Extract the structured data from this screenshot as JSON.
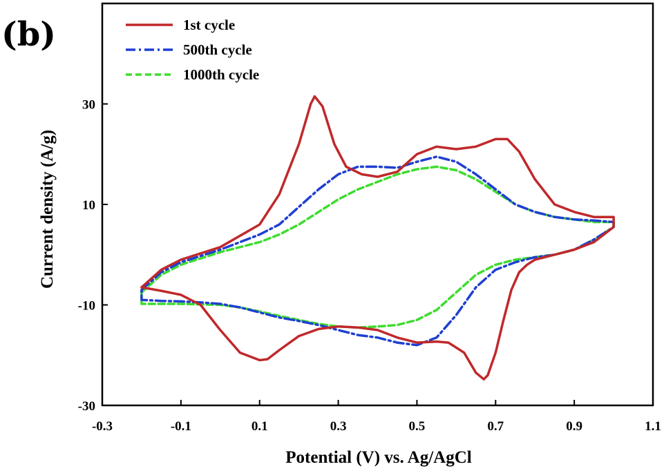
{
  "chart_data": {
    "type": "line",
    "panel_label": "(b)",
    "xlabel": "Potential (V) vs. Ag/AgCl",
    "ylabel": "Current density (A/g)",
    "xlim": [
      -0.3,
      1.1
    ],
    "ylim": [
      -30,
      50
    ],
    "x_ticks": [
      -0.3,
      -0.1,
      0.1,
      0.3,
      0.5,
      0.7,
      0.9,
      1.1
    ],
    "y_ticks": [
      -30,
      -10,
      10,
      30
    ],
    "x_tick_labels": [
      "-0.3",
      "-0.1",
      "0.1",
      "0.3",
      "0.5",
      "0.7",
      "0.9",
      "1.1"
    ],
    "y_tick_labels": [
      "-30",
      "-10",
      "10",
      "30"
    ],
    "grid": false,
    "legend_position": "top-left",
    "series": [
      {
        "name": "1st cycle",
        "color": "#c0282a",
        "style": "solid",
        "x": [
          -0.2,
          -0.15,
          -0.1,
          0.0,
          0.1,
          0.15,
          0.2,
          0.23,
          0.24,
          0.26,
          0.29,
          0.32,
          0.36,
          0.4,
          0.45,
          0.5,
          0.55,
          0.6,
          0.65,
          0.7,
          0.73,
          0.76,
          0.8,
          0.85,
          0.9,
          0.95,
          1.0,
          1.0,
          0.95,
          0.9,
          0.85,
          0.8,
          0.78,
          0.76,
          0.74,
          0.72,
          0.7,
          0.68,
          0.67,
          0.65,
          0.62,
          0.58,
          0.55,
          0.5,
          0.45,
          0.4,
          0.35,
          0.3,
          0.25,
          0.2,
          0.15,
          0.12,
          0.1,
          0.05,
          0.0,
          -0.05,
          -0.1,
          -0.15,
          -0.2
        ],
        "y": [
          -6.5,
          -3.0,
          -1.0,
          1.5,
          6.0,
          12.0,
          22.0,
          30.0,
          31.5,
          29.5,
          22.0,
          17.5,
          16.0,
          15.5,
          16.5,
          20.0,
          21.5,
          21.0,
          21.5,
          23.0,
          23.0,
          20.5,
          15.0,
          10.0,
          8.5,
          7.5,
          7.5,
          5.5,
          2.5,
          1.0,
          0.0,
          -1.0,
          -2.0,
          -3.5,
          -7.0,
          -13.0,
          -19.5,
          -24.0,
          -24.8,
          -23.5,
          -19.5,
          -17.5,
          -17.3,
          -17.5,
          -16.5,
          -15.0,
          -14.5,
          -14.3,
          -14.8,
          -16.2,
          -19.0,
          -20.8,
          -21.0,
          -19.5,
          -15.0,
          -10.0,
          -8.0,
          -7.2,
          -6.5
        ]
      },
      {
        "name": "500th cycle",
        "color": "#1f3fd1",
        "style": "dashdot",
        "x": [
          -0.2,
          -0.15,
          -0.1,
          0.0,
          0.05,
          0.1,
          0.15,
          0.2,
          0.25,
          0.3,
          0.35,
          0.4,
          0.45,
          0.5,
          0.55,
          0.6,
          0.65,
          0.7,
          0.75,
          0.8,
          0.85,
          0.9,
          0.95,
          1.0,
          1.0,
          0.95,
          0.9,
          0.85,
          0.8,
          0.75,
          0.7,
          0.65,
          0.6,
          0.55,
          0.5,
          0.45,
          0.4,
          0.35,
          0.3,
          0.25,
          0.2,
          0.15,
          0.1,
          0.05,
          0.0,
          -0.05,
          -0.1,
          -0.15,
          -0.2,
          -0.2
        ],
        "y": [
          -7.0,
          -3.5,
          -1.5,
          1.0,
          2.5,
          4.0,
          6.0,
          9.5,
          13.0,
          16.0,
          17.5,
          17.5,
          17.3,
          18.5,
          19.5,
          18.5,
          16.0,
          13.0,
          10.0,
          8.5,
          7.5,
          7.0,
          6.8,
          6.5,
          5.5,
          3.0,
          1.0,
          0.0,
          -0.5,
          -1.5,
          -3.0,
          -6.5,
          -12.0,
          -16.5,
          -18.0,
          -17.5,
          -16.5,
          -16.0,
          -15.0,
          -14.0,
          -13.2,
          -12.5,
          -11.5,
          -10.5,
          -9.8,
          -9.5,
          -9.3,
          -9.2,
          -9.0,
          -7.0
        ]
      },
      {
        "name": "1000th cycle",
        "color": "#3ddc2e",
        "style": "dashed",
        "x": [
          -0.2,
          -0.15,
          -0.1,
          0.0,
          0.05,
          0.1,
          0.15,
          0.2,
          0.25,
          0.3,
          0.35,
          0.4,
          0.45,
          0.5,
          0.55,
          0.6,
          0.65,
          0.7,
          0.75,
          0.8,
          0.85,
          0.9,
          0.95,
          1.0,
          1.0,
          0.95,
          0.9,
          0.85,
          0.8,
          0.75,
          0.7,
          0.65,
          0.6,
          0.55,
          0.5,
          0.45,
          0.4,
          0.35,
          0.3,
          0.25,
          0.2,
          0.15,
          0.1,
          0.05,
          0.0,
          -0.05,
          -0.1,
          -0.15,
          -0.2,
          -0.2
        ],
        "y": [
          -7.5,
          -4.0,
          -2.0,
          0.5,
          1.5,
          2.5,
          4.0,
          6.0,
          8.5,
          11.0,
          13.0,
          14.5,
          16.0,
          17.0,
          17.5,
          16.8,
          15.0,
          12.5,
          10.0,
          8.5,
          7.5,
          7.0,
          6.5,
          6.5,
          5.5,
          3.0,
          1.0,
          0.0,
          -0.5,
          -1.0,
          -2.0,
          -4.0,
          -7.5,
          -11.0,
          -13.0,
          -14.0,
          -14.3,
          -14.5,
          -14.3,
          -13.8,
          -13.0,
          -12.2,
          -11.3,
          -10.5,
          -10.0,
          -9.9,
          -9.8,
          -9.8,
          -9.8,
          -7.5
        ]
      }
    ]
  }
}
